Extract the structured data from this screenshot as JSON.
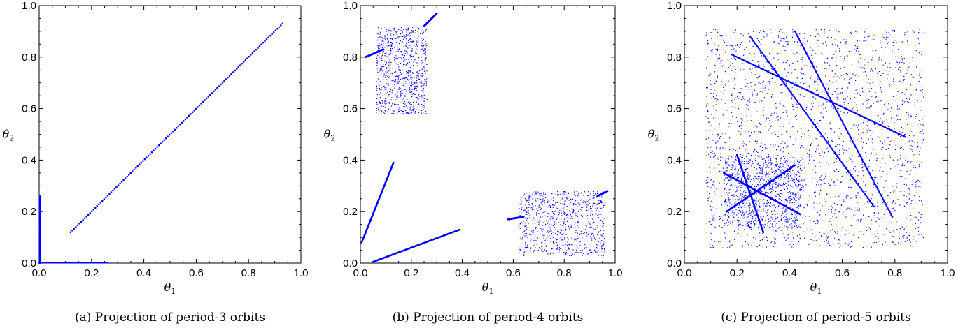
{
  "chart_data": [
    {
      "type": "scatter",
      "caption": "(a) Projection of period-3 orbits",
      "xlabel": "θ1",
      "ylabel": "θ2",
      "xlim": [
        0,
        1
      ],
      "ylim": [
        0,
        1
      ],
      "xticks": [
        "0.0",
        "0.2",
        "0.4",
        "0.6",
        "0.8",
        "1.0"
      ],
      "yticks": [
        "0.0",
        "0.2",
        "0.4",
        "0.6",
        "0.8",
        "1.0"
      ],
      "color": "#0000ff",
      "segments": [
        {
          "x": [
            0.12,
            0.93
          ],
          "y": [
            0.12,
            0.93
          ]
        },
        {
          "x": [
            0.002,
            0.002
          ],
          "y": [
            0.0,
            0.26
          ]
        },
        {
          "x": [
            0.0,
            0.26
          ],
          "y": [
            0.002,
            0.002
          ]
        }
      ],
      "clusters": []
    },
    {
      "type": "scatter",
      "caption": "(b) Projection of period-4 orbits",
      "xlabel": "θ1",
      "ylabel": "θ2",
      "xlim": [
        0,
        1
      ],
      "ylim": [
        0,
        1
      ],
      "xticks": [
        "0.0",
        "0.2",
        "0.4",
        "0.6",
        "0.8",
        "1.0"
      ],
      "yticks": [
        "0.0",
        "0.2",
        "0.4",
        "0.6",
        "0.8",
        "1.0"
      ],
      "color": "#0000ff",
      "segments": [
        {
          "x": [
            0.005,
            0.13
          ],
          "y": [
            0.08,
            0.39
          ]
        },
        {
          "x": [
            0.05,
            0.39
          ],
          "y": [
            0.005,
            0.13
          ]
        },
        {
          "x": [
            0.02,
            0.09
          ],
          "y": [
            0.8,
            0.83
          ]
        },
        {
          "x": [
            0.25,
            0.3
          ],
          "y": [
            0.92,
            0.97
          ]
        },
        {
          "x": [
            0.58,
            0.64
          ],
          "y": [
            0.17,
            0.18
          ]
        },
        {
          "x": [
            0.93,
            0.97
          ],
          "y": [
            0.26,
            0.28
          ]
        }
      ],
      "clusters": [
        {
          "x": [
            0.06,
            0.26
          ],
          "y": [
            0.58,
            0.92
          ],
          "n": 900
        },
        {
          "x": [
            0.62,
            0.96
          ],
          "y": [
            0.03,
            0.28
          ],
          "n": 900
        }
      ]
    },
    {
      "type": "scatter",
      "caption": "(c) Projection of period-5 orbits",
      "xlabel": "θ1",
      "ylabel": "θ2",
      "xlim": [
        0,
        1
      ],
      "ylim": [
        0,
        1
      ],
      "xticks": [
        "0.0",
        "0.2",
        "0.4",
        "0.6",
        "0.8",
        "1.0"
      ],
      "yticks": [
        "0.0",
        "0.2",
        "0.4",
        "0.6",
        "0.8",
        "1.0"
      ],
      "color": "#0000ff",
      "segments": [
        {
          "x": [
            0.18,
            0.84
          ],
          "y": [
            0.81,
            0.49
          ]
        },
        {
          "x": [
            0.42,
            0.79
          ],
          "y": [
            0.9,
            0.18
          ]
        },
        {
          "x": [
            0.25,
            0.72
          ],
          "y": [
            0.88,
            0.22
          ]
        },
        {
          "x": [
            0.15,
            0.44
          ],
          "y": [
            0.35,
            0.19
          ]
        },
        {
          "x": [
            0.16,
            0.42
          ],
          "y": [
            0.2,
            0.38
          ]
        },
        {
          "x": [
            0.2,
            0.3
          ],
          "y": [
            0.42,
            0.12
          ]
        }
      ],
      "clusters": [
        {
          "x": [
            0.08,
            0.91
          ],
          "y": [
            0.06,
            0.91
          ],
          "n": 2600
        },
        {
          "x": [
            0.15,
            0.44
          ],
          "y": [
            0.14,
            0.42
          ],
          "n": 900
        }
      ]
    }
  ]
}
